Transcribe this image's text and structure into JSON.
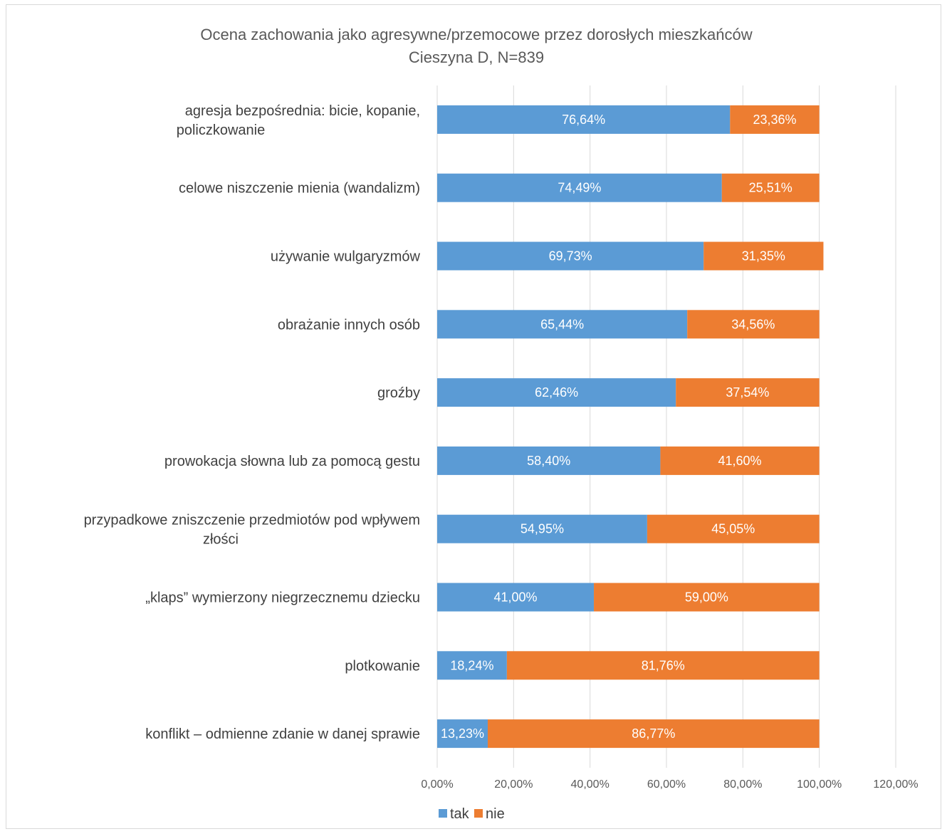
{
  "chart_data": {
    "type": "bar",
    "orientation": "horizontal",
    "stacked": true,
    "title": "Ocena zachowania jako  agresywne/przemocowe przez dorosłych mieszkańców",
    "subtitle": "Cieszyna D, N=839",
    "categories": [
      "agresja bezpośrednia: bicie, kopanie, policzkowanie",
      "celowe niszczenie mienia (wandalizm)",
      "używanie wulgaryzmów",
      "obrażanie innych osób",
      "groźby",
      "prowokacja słowna lub za pomocą gestu",
      "przypadkowe zniszczenie przedmiotów pod wpływem złości",
      "„klaps” wymierzony niegrzecznemu dziecku",
      "plotkowanie",
      "konflikt – odmienne zdanie w danej sprawie"
    ],
    "series": [
      {
        "name": "tak",
        "color": "#5b9bd5",
        "values": [
          76.64,
          74.49,
          69.73,
          65.44,
          62.46,
          58.4,
          54.95,
          41.0,
          18.24,
          13.23
        ],
        "labels": [
          "76,64%",
          "74,49%",
          "69,73%",
          "65,44%",
          "62,46%",
          "58,40%",
          "54,95%",
          "41,00%",
          "18,24%",
          "13,23%"
        ]
      },
      {
        "name": "nie",
        "color": "#ed7d31",
        "values": [
          23.36,
          25.51,
          31.35,
          34.56,
          37.54,
          41.6,
          45.05,
          59.0,
          81.76,
          86.77
        ],
        "labels": [
          "23,36%",
          "25,51%",
          "31,35%",
          "34,56%",
          "37,54%",
          "41,60%",
          "45,05%",
          "59,00%",
          "81,76%",
          "86,77%"
        ]
      }
    ],
    "xlim": [
      0,
      120
    ],
    "xticks": [
      0,
      20,
      40,
      60,
      80,
      100,
      120
    ],
    "xtick_labels": [
      "0,00%",
      "20,00%",
      "40,00%",
      "60,00%",
      "80,00%",
      "100,00%",
      "120,00%"
    ],
    "grid": true,
    "legend_position": "bottom"
  }
}
